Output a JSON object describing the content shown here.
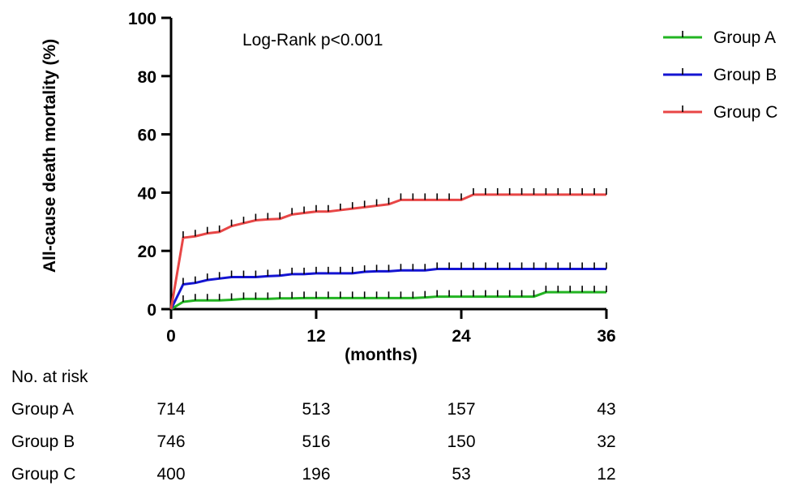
{
  "chart_data": {
    "type": "line",
    "ylabel": "All-cause death mortality (%)",
    "xlabel": "(months)",
    "xlim": [
      0,
      36
    ],
    "ylim": [
      0,
      100
    ],
    "xticks": [
      0,
      12,
      24,
      36
    ],
    "yticks": [
      0,
      20,
      40,
      60,
      80,
      100
    ],
    "annotation": "Log-Rank p<0.001",
    "legend_position": "top-right",
    "grid": false,
    "series": [
      {
        "name": "Group A",
        "color": "#22b422",
        "x": [
          0,
          1,
          2,
          3,
          4,
          5,
          6,
          7,
          8,
          9,
          10,
          11,
          12,
          13,
          14,
          15,
          16,
          17,
          18,
          19,
          20,
          21,
          22,
          23,
          24,
          25,
          26,
          27,
          28,
          29,
          30,
          31,
          32,
          33,
          34,
          35,
          36
        ],
        "y": [
          0,
          2.5,
          3.0,
          3.0,
          3.0,
          3.2,
          3.5,
          3.5,
          3.5,
          3.7,
          3.7,
          3.8,
          3.8,
          3.8,
          3.8,
          3.8,
          3.8,
          3.8,
          3.8,
          3.8,
          3.8,
          4.0,
          4.3,
          4.3,
          4.3,
          4.3,
          4.3,
          4.3,
          4.3,
          4.3,
          4.3,
          5.8,
          5.8,
          5.8,
          5.8,
          5.8,
          5.8
        ]
      },
      {
        "name": "Group B",
        "color": "#1414d2",
        "x": [
          0,
          1,
          2,
          3,
          4,
          5,
          6,
          7,
          8,
          9,
          10,
          11,
          12,
          13,
          14,
          15,
          16,
          17,
          18,
          19,
          20,
          21,
          22,
          23,
          24,
          25,
          26,
          27,
          28,
          29,
          30,
          31,
          32,
          33,
          34,
          35,
          36
        ],
        "y": [
          0,
          8.5,
          9.0,
          10.0,
          10.5,
          11.0,
          11.0,
          11.0,
          11.3,
          11.5,
          12.0,
          12.0,
          12.3,
          12.3,
          12.3,
          12.3,
          12.8,
          13.0,
          13.0,
          13.3,
          13.3,
          13.3,
          13.8,
          13.8,
          13.8,
          13.8,
          13.8,
          13.8,
          13.8,
          13.8,
          13.8,
          13.8,
          13.8,
          13.8,
          13.8,
          13.8,
          13.8
        ]
      },
      {
        "name": "Group C",
        "color": "#e84646",
        "x": [
          0,
          1,
          2,
          3,
          4,
          5,
          6,
          7,
          8,
          9,
          10,
          11,
          12,
          13,
          14,
          15,
          16,
          17,
          18,
          19,
          20,
          21,
          22,
          23,
          24,
          25,
          26,
          27,
          28,
          29,
          30,
          31,
          32,
          33,
          34,
          35,
          36
        ],
        "y": [
          0,
          24.5,
          25.0,
          26.0,
          26.5,
          28.5,
          29.5,
          30.5,
          30.8,
          31.0,
          32.5,
          33.0,
          33.5,
          33.5,
          34.0,
          34.5,
          35.0,
          35.5,
          36.0,
          37.5,
          37.5,
          37.5,
          37.5,
          37.5,
          37.5,
          39.3,
          39.3,
          39.3,
          39.3,
          39.3,
          39.3,
          39.3,
          39.3,
          39.3,
          39.3,
          39.3,
          39.3
        ]
      }
    ]
  },
  "risk_table": {
    "title": "No. at risk",
    "times": [
      0,
      12,
      24,
      36
    ],
    "rows": [
      {
        "label": "Group A",
        "values": [
          "714",
          "513",
          "157",
          "43"
        ]
      },
      {
        "label": "Group B",
        "values": [
          "746",
          "516",
          "150",
          "32"
        ]
      },
      {
        "label": "Group C",
        "values": [
          "400",
          "196",
          "53",
          "12"
        ]
      }
    ]
  }
}
